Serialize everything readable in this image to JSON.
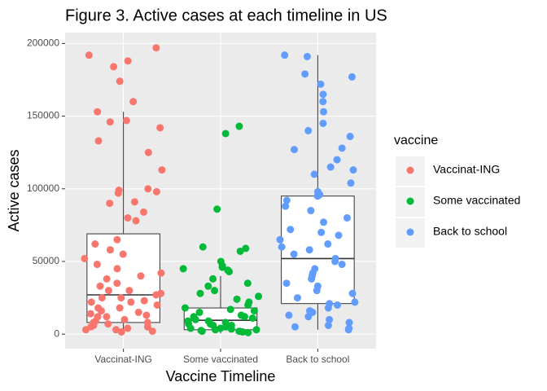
{
  "chart_data": {
    "type": "boxplot-jitter",
    "title": "Figure 3. Active cases at each timeline in US",
    "x_label": "Vaccine Timeline",
    "y_label": "Active cases",
    "legend_title": "vaccine",
    "categories": [
      "Vaccinat-ING",
      "Some vaccinated",
      "Back to school"
    ],
    "ylim": [
      -10000,
      207500
    ],
    "yticks": [
      0,
      50000,
      100000,
      150000,
      200000
    ],
    "grid": true,
    "legend": "right",
    "series": [
      {
        "name": "Vaccinat-ING",
        "color": "#F8766D",
        "box": {
          "min": 1000,
          "q1": 8000,
          "median": 27000,
          "q3": 69000,
          "max": 153000
        },
        "values": [
          197000,
          192000,
          188000,
          184000,
          174000,
          160000,
          153000,
          146000,
          147000,
          142000,
          125000,
          133000,
          113000,
          100000,
          99000,
          98000,
          97000,
          91000,
          90000,
          84000,
          80000,
          78000,
          65000,
          62000,
          58000,
          55000,
          52000,
          48000,
          45000,
          42000,
          40000,
          38000,
          35000,
          33000,
          30000,
          28000,
          27000,
          25000,
          23000,
          22000,
          20000,
          18000,
          16000,
          15000,
          13000,
          12000,
          10000,
          9000,
          8000,
          7000,
          6000,
          5000,
          4000,
          3000,
          2000,
          1500,
          25000,
          30000,
          18000,
          12000,
          5000,
          8000,
          3000,
          22000,
          14000
        ]
      },
      {
        "name": "Some vaccinated",
        "color": "#00BA38",
        "box": {
          "min": 500,
          "q1": 3000,
          "median": 9500,
          "q3": 18000,
          "max": 40000
        },
        "values": [
          143000,
          138000,
          86000,
          60000,
          59000,
          57000,
          50000,
          47000,
          46000,
          45000,
          44000,
          43000,
          38000,
          35000,
          33000,
          30000,
          28000,
          26000,
          24000,
          22000,
          20000,
          18000,
          17000,
          16000,
          15000,
          13000,
          12000,
          11000,
          10000,
          9000,
          8000,
          7000,
          6000,
          5000,
          4000,
          3500,
          3000,
          2500,
          2000,
          1500,
          1000,
          6000,
          9000,
          4000,
          12000,
          2000,
          7000,
          3000
        ]
      },
      {
        "name": "Back to school",
        "color": "#619CFF",
        "box": {
          "min": 3000,
          "q1": 21000,
          "median": 52000,
          "q3": 95000,
          "max": 192000
        },
        "values": [
          192000,
          191000,
          179000,
          177000,
          172000,
          165000,
          160000,
          153000,
          145000,
          140000,
          136000,
          128000,
          127000,
          120000,
          115000,
          113000,
          110000,
          104000,
          98000,
          96000,
          95000,
          92000,
          88000,
          85000,
          80000,
          77000,
          72000,
          70000,
          68000,
          65000,
          62000,
          60000,
          58000,
          55000,
          52000,
          50000,
          48000,
          45000,
          42000,
          40000,
          38000,
          35000,
          33000,
          30000,
          28000,
          25000,
          22000,
          21000,
          20000,
          18000,
          16000,
          15000,
          13000,
          12000,
          10000,
          8000,
          6000,
          5000,
          4000,
          3000
        ]
      }
    ]
  }
}
